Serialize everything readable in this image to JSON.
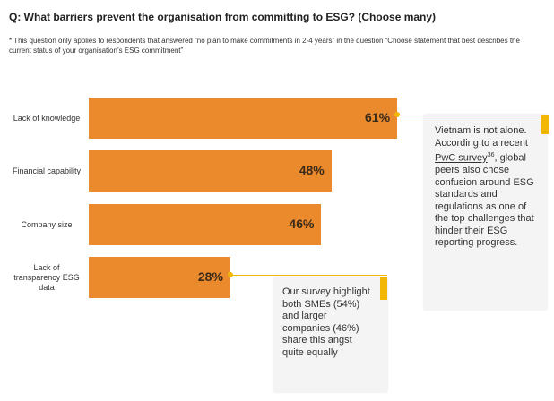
{
  "chart_data": {
    "type": "bar",
    "orientation": "horizontal",
    "title": "Q: What barriers prevent the organisation from committing to ESG? (Choose many)",
    "note": "* This question only applies to respondents that answered “no plan to make commitments in 2-4 years” in the question “Choose statement that best describes the current status of your organisation’s ESG commitment”",
    "categories": [
      "Lack of knowledge",
      "Financial capability",
      "Company size",
      "Lack of transparency ESG data"
    ],
    "values": [
      61,
      48,
      46,
      28
    ],
    "value_labels": [
      "61%",
      "48%",
      "46%",
      "28%"
    ],
    "color": "#ea8a2c",
    "callouts": [
      {
        "text_before": "Vietnam is not alone. According to a recent ",
        "link": "PwC survey",
        "sup": "36",
        "text_after": ", global peers also chose confusion around ESG standards and regulations as one of the top challenges that hinder their ESG reporting progress."
      },
      {
        "text": "Our survey highlight both SMEs (54%) and larger companies (46%) share this angst quite equally"
      }
    ]
  }
}
